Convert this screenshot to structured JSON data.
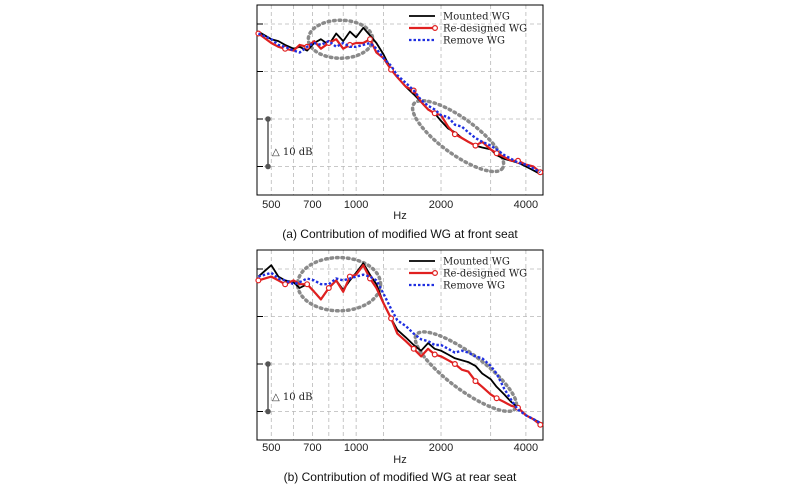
{
  "colors": {
    "mounted": "#000000",
    "redesigned": "#e02020",
    "remove": "#1f2fe0",
    "grid": "#b8b8b8",
    "highlight": "#8a8a8a",
    "marker": "#555555"
  },
  "chart_data": [
    {
      "type": "line",
      "id": "front",
      "caption": "(a) Contribution of modified WG at front seat",
      "xlabel": "Hz",
      "ylabel": "",
      "x_scale": "log",
      "xlim": [
        445,
        4600
      ],
      "ylim": [
        0,
        100
      ],
      "x_ticks": [
        {
          "value": 500,
          "label": "500"
        },
        {
          "value": 700,
          "label": "700"
        },
        {
          "value": 1000,
          "label": "1000"
        },
        {
          "value": 2000,
          "label": "2000"
        },
        {
          "value": 4000,
          "label": "4000"
        }
      ],
      "x_gridlines": [
        500,
        600,
        700,
        800,
        900,
        1000,
        1250,
        2000,
        3000,
        4000
      ],
      "y_gridlines": [
        15,
        40,
        65,
        90
      ],
      "y_tick_marks": [
        15,
        40,
        65,
        90
      ],
      "scale_annotation": {
        "label": "△ 10 dB",
        "y_from": 15,
        "y_to": 40
      },
      "legend": {
        "position": "top-right",
        "entries": [
          "Mounted WG",
          "Re-designed WG",
          "Remove WG"
        ]
      },
      "highlights": [
        {
          "x_center": 880,
          "y_center": 82,
          "x_span": [
            680,
            1150
          ],
          "y_span": [
            72,
            92
          ]
        },
        {
          "x_center": 2300,
          "y_center": 31,
          "x_span": [
            1650,
            3400
          ],
          "y_span": [
            14,
            48
          ]
        }
      ],
      "x": [
        450,
        500,
        530,
        560,
        600,
        630,
        670,
        710,
        750,
        800,
        850,
        900,
        950,
        1000,
        1060,
        1120,
        1180,
        1250,
        1330,
        1400,
        1500,
        1600,
        1700,
        1800,
        1900,
        2000,
        2120,
        2240,
        2370,
        2500,
        2650,
        2800,
        3000,
        3150,
        3350,
        3550,
        3750,
        4000,
        4250,
        4500
      ],
      "series": [
        {
          "name": "Mounted WG",
          "values": [
            86,
            82,
            81,
            79,
            77,
            78,
            76,
            80,
            82,
            79,
            85,
            81,
            86,
            83,
            88,
            84,
            80,
            74,
            66,
            62,
            57,
            53,
            49,
            45,
            43,
            39,
            35,
            33,
            30,
            28,
            26,
            25,
            24,
            21,
            19,
            18,
            17,
            15,
            13,
            11
          ]
        },
        {
          "name": "Re-designed WG",
          "values": [
            85,
            80,
            78,
            77,
            76,
            79,
            78,
            81,
            77,
            80,
            82,
            77,
            79,
            80,
            80,
            82,
            75,
            72,
            66,
            62,
            57,
            55,
            49,
            45,
            43,
            42,
            36,
            32,
            30,
            28,
            26,
            28,
            24,
            22,
            20,
            18,
            18,
            16,
            15,
            12
          ]
        },
        {
          "name": "Remove WG",
          "values": [
            85,
            82,
            79,
            78,
            76,
            75,
            78,
            80,
            79,
            81,
            78,
            80,
            78,
            78,
            79,
            80,
            77,
            72,
            68,
            63,
            59,
            55,
            50,
            47,
            45,
            42,
            41,
            37,
            36,
            33,
            30,
            28,
            26,
            24,
            21,
            19,
            17,
            16,
            14,
            12
          ]
        }
      ]
    },
    {
      "type": "line",
      "id": "rear",
      "caption": "(b) Contribution of modified WG at rear seat",
      "xlabel": "Hz",
      "ylabel": "",
      "x_scale": "log",
      "xlim": [
        445,
        4600
      ],
      "ylim": [
        0,
        100
      ],
      "x_ticks": [
        {
          "value": 500,
          "label": "500"
        },
        {
          "value": 700,
          "label": "700"
        },
        {
          "value": 1000,
          "label": "1000"
        },
        {
          "value": 2000,
          "label": "2000"
        },
        {
          "value": 4000,
          "label": "4000"
        }
      ],
      "x_gridlines": [
        500,
        600,
        700,
        800,
        900,
        1000,
        1250,
        2000,
        3000,
        4000
      ],
      "y_gridlines": [
        15,
        40,
        65,
        90
      ],
      "y_tick_marks": [
        15,
        40,
        65,
        90
      ],
      "scale_annotation": {
        "label": "△ 10 dB",
        "y_from": 15,
        "y_to": 40
      },
      "legend": {
        "position": "top-right",
        "entries": [
          "Mounted WG",
          "Re-designed WG",
          "Remove WG"
        ]
      },
      "highlights": [
        {
          "x_center": 870,
          "y_center": 82,
          "x_span": [
            640,
            1260
          ],
          "y_span": [
            68,
            96
          ]
        },
        {
          "x_center": 2450,
          "y_center": 36,
          "x_span": [
            1650,
            3700
          ],
          "y_span": [
            17,
            56
          ]
        }
      ],
      "x": [
        450,
        500,
        530,
        560,
        600,
        630,
        670,
        710,
        750,
        800,
        850,
        900,
        950,
        1000,
        1060,
        1120,
        1180,
        1250,
        1330,
        1400,
        1500,
        1600,
        1700,
        1800,
        1900,
        2000,
        2120,
        2240,
        2370,
        2500,
        2650,
        2800,
        3000,
        3150,
        3350,
        3550,
        3750,
        4000,
        4250,
        4500
      ],
      "series": [
        {
          "name": "Mounted WG",
          "values": [
            86,
            92,
            86,
            84,
            83,
            80,
            82,
            78,
            74,
            80,
            84,
            79,
            84,
            88,
            93,
            87,
            82,
            72,
            64,
            58,
            54,
            50,
            47,
            51,
            48,
            47,
            45,
            43,
            42,
            41,
            39,
            35,
            32,
            28,
            24,
            20,
            17,
            13,
            11,
            9
          ]
        },
        {
          "name": "Re-designed WG",
          "values": [
            84,
            86,
            84,
            82,
            84,
            82,
            82,
            78,
            74,
            80,
            84,
            78,
            86,
            87,
            92,
            85,
            80,
            72,
            64,
            56,
            52,
            48,
            44,
            48,
            45,
            44,
            42,
            40,
            37,
            36,
            31,
            28,
            24,
            22,
            20,
            18,
            17,
            13,
            11,
            8
          ]
        },
        {
          "name": "Remove WG",
          "values": [
            86,
            88,
            85,
            84,
            82,
            83,
            85,
            84,
            82,
            82,
            85,
            84,
            85,
            86,
            87,
            86,
            84,
            77,
            69,
            63,
            60,
            56,
            53,
            52,
            50,
            50,
            48,
            46,
            47,
            46,
            44,
            43,
            39,
            35,
            27,
            21,
            16,
            13,
            11,
            9
          ]
        }
      ]
    }
  ]
}
